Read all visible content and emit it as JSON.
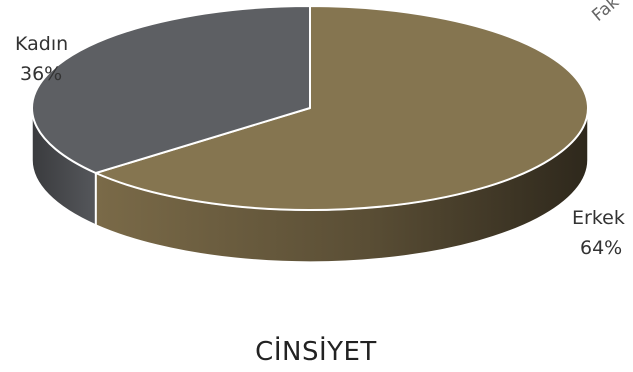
{
  "chart_data": {
    "type": "pie",
    "title": "CİNSİYET",
    "slices": [
      {
        "label": "Erkek",
        "value": 64,
        "value_label": "64%",
        "color": "#857550",
        "side_color": "#5a4e35"
      },
      {
        "label": "Kadın",
        "value": 36,
        "value_label": "36%",
        "color": "#5d5f63",
        "side_color": "#3d3e41"
      }
    ],
    "three_d": true,
    "legend": "none"
  },
  "watermark": {
    "text": "Fak"
  }
}
